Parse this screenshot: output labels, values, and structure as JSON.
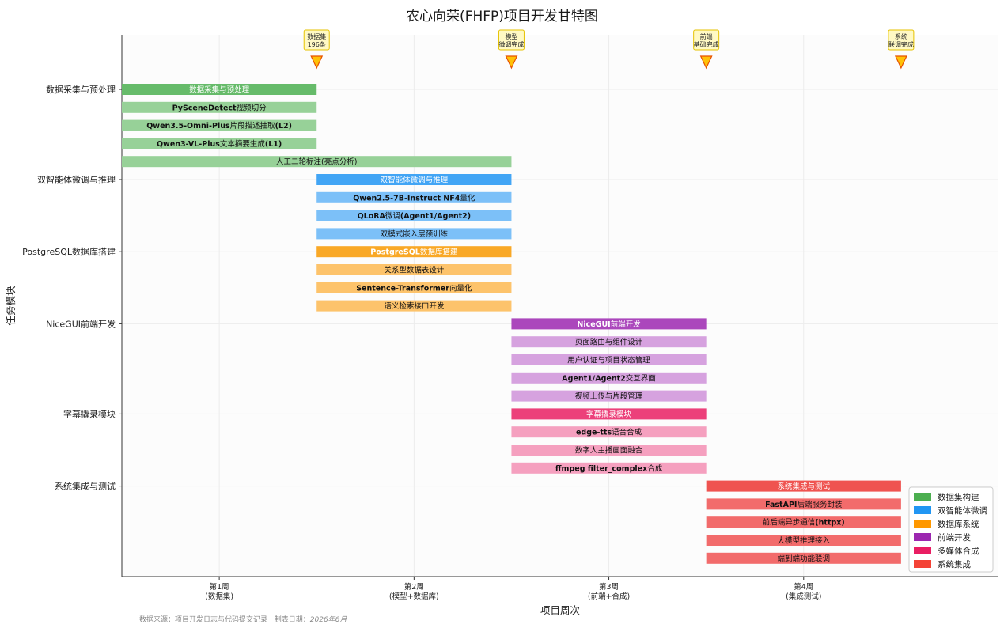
{
  "chart_data": {
    "type": "gantt",
    "title": "农心向荣(FHFP)项目开发甘特图",
    "xlabel": "项目周次",
    "ylabel": "任务模块",
    "xlim": [
      0.5,
      5.0
    ],
    "x_ticks": [
      {
        "value": 1,
        "line1": "第1周",
        "line2": "(数据集)"
      },
      {
        "value": 2,
        "line1": "第2周",
        "line2": "(模型+数据库)"
      },
      {
        "value": 3,
        "line1": "第3周",
        "line2": "(前端+合成)"
      },
      {
        "value": 4,
        "line1": "第4周",
        "line2": "(集成测试)"
      }
    ],
    "grid": true,
    "legend_position": "lower-right",
    "categories_y": [
      {
        "label": "数据采集与预处理",
        "row": 0
      },
      {
        "label": "双智能体微调与推理",
        "row": 5
      },
      {
        "label": "PostgreSQL数据库搭建",
        "row": 9
      },
      {
        "label": "NiceGUI前端开发",
        "row": 13
      },
      {
        "label": "字幕撬录模块",
        "row": 18
      },
      {
        "label": "系统集成与测试",
        "row": 22
      }
    ],
    "tasks": [
      {
        "row": 0,
        "label": "数据采集与预处理",
        "start": 0.5,
        "end": 1.5,
        "group": "data",
        "main": true
      },
      {
        "row": 1,
        "bold": "PySceneDetect",
        "rest": "视频切分",
        "start": 0.5,
        "end": 1.5,
        "group": "data"
      },
      {
        "row": 2,
        "bold": "Qwen3.5-Omni-Plus",
        "rest": "片段描述抽取",
        "bold2": "(L2)",
        "start": 0.5,
        "end": 1.5,
        "group": "data"
      },
      {
        "row": 3,
        "bold": "Qwen3-VL-Plus",
        "rest": "文本摘要生成",
        "bold2": "(L1)",
        "start": 0.5,
        "end": 1.5,
        "group": "data"
      },
      {
        "row": 4,
        "label": "人工二轮标注(亮点分析)",
        "start": 0.5,
        "end": 2.5,
        "group": "data"
      },
      {
        "row": 5,
        "label": "双智能体微调与推理",
        "start": 1.5,
        "end": 2.5,
        "group": "agent",
        "main": true
      },
      {
        "row": 6,
        "bold": "Qwen2.5-7B-Instruct NF4",
        "rest": "量化",
        "start": 1.5,
        "end": 2.5,
        "group": "agent"
      },
      {
        "row": 7,
        "bold": "QLoRA",
        "rest": "微调",
        "bold2": "(Agent1/Agent2)",
        "start": 1.5,
        "end": 2.5,
        "group": "agent"
      },
      {
        "row": 8,
        "label": "双模式嵌入层预训练",
        "start": 1.5,
        "end": 2.5,
        "group": "agent"
      },
      {
        "row": 9,
        "bold": "PostgreSQL",
        "rest": "数据库搭建",
        "start": 1.5,
        "end": 2.5,
        "group": "db",
        "main": true
      },
      {
        "row": 10,
        "label": "关系型数据表设计",
        "start": 1.5,
        "end": 2.5,
        "group": "db"
      },
      {
        "row": 11,
        "bold": "Sentence-Transformer",
        "rest": "向量化",
        "start": 1.5,
        "end": 2.5,
        "group": "db"
      },
      {
        "row": 12,
        "label": "语义检索接口开发",
        "start": 1.5,
        "end": 2.5,
        "group": "db"
      },
      {
        "row": 13,
        "bold": "NiceGUI",
        "rest": "前端开发",
        "start": 2.5,
        "end": 3.5,
        "group": "fe",
        "main": true
      },
      {
        "row": 14,
        "label": "页面路由与组件设计",
        "start": 2.5,
        "end": 3.5,
        "group": "fe"
      },
      {
        "row": 15,
        "label": "用户认证与项目状态管理",
        "start": 2.5,
        "end": 3.5,
        "group": "fe"
      },
      {
        "row": 16,
        "bold": "Agent1/Agent2",
        "rest": "交互界面",
        "start": 2.5,
        "end": 3.5,
        "group": "fe"
      },
      {
        "row": 17,
        "label": "视频上传与片段管理",
        "start": 2.5,
        "end": 3.5,
        "group": "fe"
      },
      {
        "row": 18,
        "label": "字幕撬录模块",
        "start": 2.5,
        "end": 3.5,
        "group": "mm",
        "main": true
      },
      {
        "row": 19,
        "bold": "edge-tts",
        "rest": "语音合成",
        "start": 2.5,
        "end": 3.5,
        "group": "mm"
      },
      {
        "row": 20,
        "label": "数字人主播画面融合",
        "start": 2.5,
        "end": 3.5,
        "group": "mm"
      },
      {
        "row": 21,
        "bold": "ffmpeg filter_complex",
        "rest": "合成",
        "start": 2.5,
        "end": 3.5,
        "group": "mm"
      },
      {
        "row": 22,
        "label": "系统集成与测试",
        "start": 3.5,
        "end": 4.5,
        "group": "sys",
        "main": true
      },
      {
        "row": 23,
        "bold": "FastAPI",
        "rest": "后端服务封装",
        "start": 3.5,
        "end": 4.5,
        "group": "sys"
      },
      {
        "row": 24,
        "rest": "前后端异步通信",
        "bold2": "(httpx)",
        "start": 3.5,
        "end": 4.5,
        "group": "sys"
      },
      {
        "row": 25,
        "label": "大模型推理接入",
        "start": 3.5,
        "end": 4.5,
        "group": "sys"
      },
      {
        "row": 26,
        "label": "端到端功能联调",
        "start": 3.5,
        "end": 4.5,
        "group": "sys"
      }
    ],
    "milestones": [
      {
        "x": 1.5,
        "line1": "数据集",
        "line2": "196条"
      },
      {
        "x": 2.5,
        "line1": "模型",
        "line2": "微调完成"
      },
      {
        "x": 3.5,
        "line1": "前端",
        "line2": "基础完成"
      },
      {
        "x": 4.5,
        "line1": "系统",
        "line2": "联调完成"
      }
    ],
    "legend": [
      {
        "group": "data",
        "label": "数据集构建"
      },
      {
        "group": "agent",
        "label": "双智能体微调"
      },
      {
        "group": "db",
        "label": "数据库系统"
      },
      {
        "group": "fe",
        "label": "前端开发"
      },
      {
        "group": "mm",
        "label": "多媒体合成"
      },
      {
        "group": "sys",
        "label": "系统集成"
      }
    ],
    "colors": {
      "data": {
        "main": "#66bb6a",
        "sub": "#97d198",
        "legend": "#4caf50"
      },
      "agent": {
        "main": "#42a5f5",
        "sub": "#7cc0f8",
        "legend": "#2196f3"
      },
      "db": {
        "main": "#f9a826",
        "sub": "#fdc36b",
        "legend": "#ff9800"
      },
      "fe": {
        "main": "#ab47bc",
        "sub": "#d6a2df",
        "legend": "#9c27b0"
      },
      "mm": {
        "main": "#ec407a",
        "sub": "#f5a0bf",
        "legend": "#e91e63"
      },
      "sys": {
        "main": "#ef5350",
        "sub": "#f26b6b",
        "legend": "#f44336"
      }
    }
  },
  "footnote": {
    "source": "数据来源：项目开发日志与代码提交记录 | 制表日期：",
    "date": "2026年6月"
  }
}
